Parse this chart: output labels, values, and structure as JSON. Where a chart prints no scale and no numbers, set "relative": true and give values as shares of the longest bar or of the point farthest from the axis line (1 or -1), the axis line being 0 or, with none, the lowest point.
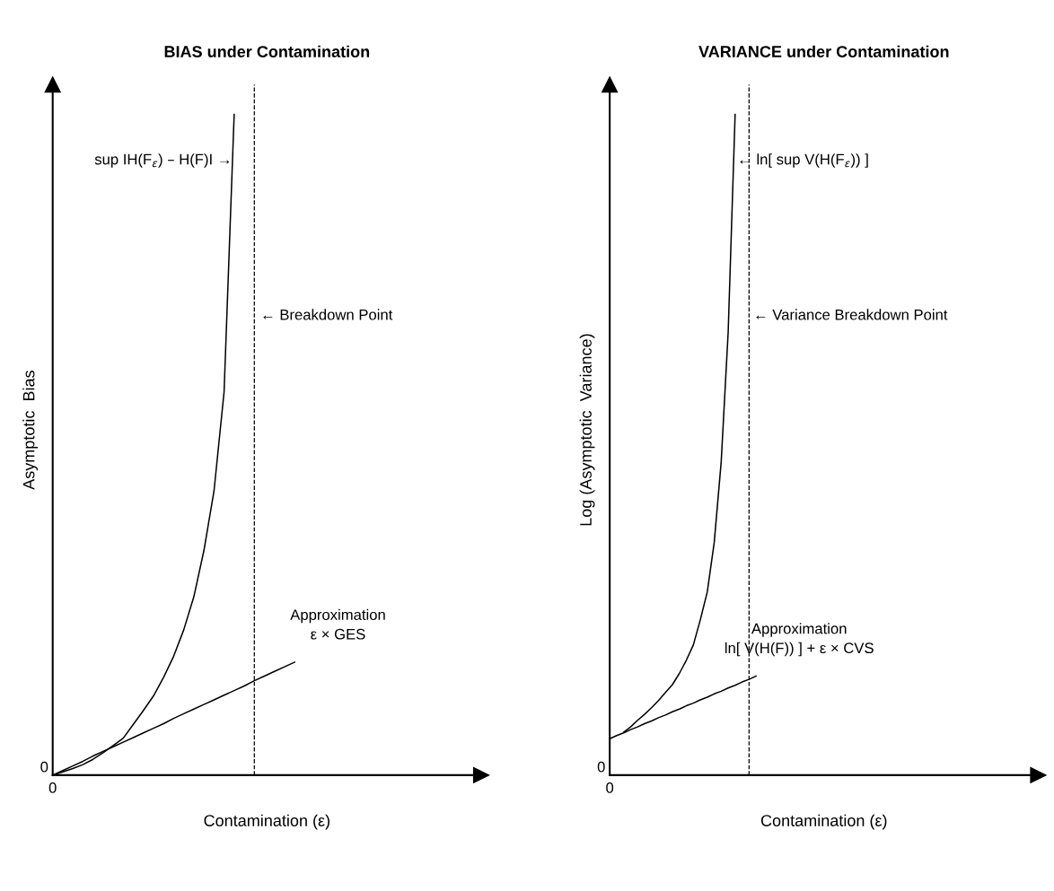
{
  "chart_data": [
    {
      "type": "line",
      "title": "BIAS under Contamination",
      "xlabel": "Contamination (ε)",
      "ylabel": "Asymptotic  Bias",
      "relative": true,
      "marker": "none",
      "categories": [
        null,
        null,
        null,
        null,
        null,
        null,
        null,
        null,
        null,
        null,
        null,
        null,
        null,
        null,
        null,
        null,
        null,
        null,
        null,
        null,
        null,
        null,
        null,
        null,
        null,
        null,
        null,
        null,
        null,
        null,
        null,
        null,
        null,
        null,
        null,
        null,
        null,
        null,
        null,
        null,
        null,
        null,
        null
      ],
      "series": [
        {
          "color": "#000000",
          "values": [
            0,
            0.005,
            0.01,
            0.016,
            0.024,
            0.034,
            0.045,
            0.056,
            0.077,
            0.098,
            0.12,
            0.148,
            0.18,
            0.22,
            0.27,
            0.34,
            0.43,
            0.58,
            1.0,
            null,
            null,
            null,
            null,
            null,
            null,
            null,
            null,
            null,
            null,
            null,
            null,
            null,
            null,
            null,
            null,
            null,
            null,
            null,
            null,
            null,
            null,
            null,
            null
          ]
        },
        {
          "color": "#000000",
          "values": [
            0,
            0.007,
            0.014,
            0.021,
            0.029,
            0.036,
            0.043,
            0.05,
            0.057,
            0.064,
            0.071,
            0.078,
            0.086,
            0.093,
            0.1,
            0.107,
            0.114,
            0.121,
            0.128,
            0.135,
            0.143,
            0.15,
            0.157,
            0.164,
            0.171,
            null,
            null,
            null,
            null,
            null,
            null,
            null,
            null,
            null,
            null,
            null,
            null,
            null,
            null,
            null,
            null,
            null,
            null
          ]
        }
      ],
      "ref_lines": [
        {
          "axis": "x",
          "label": "← Breakdown Point",
          "line_style": "dashed",
          "color": "#000000"
        }
      ],
      "annotations": [
        "sup IH(F$_{ε}$) – H(F)I →",
        "Approximation\nε × GES",
        "0"
      ]
    },
    {
      "type": "line",
      "title": "VARIANCE under Contamination",
      "xlabel": "Contamination (ε)",
      "ylabel": "Log (Asymptotic  Variance)",
      "relative": true,
      "marker": "none",
      "categories": [
        null,
        null,
        null,
        null,
        null,
        null,
        null,
        null,
        null,
        null,
        null,
        null,
        null,
        null,
        null,
        null,
        null,
        null,
        null,
        null,
        null,
        null,
        null,
        null,
        null,
        null,
        null,
        null,
        null,
        null,
        null,
        null,
        null,
        null,
        null,
        null,
        null,
        null,
        null,
        null,
        null,
        null,
        null,
        null,
        null,
        null,
        null,
        null,
        null,
        null,
        null,
        null,
        null,
        null,
        null,
        null,
        null,
        null,
        null,
        null,
        null,
        null
      ],
      "series": [
        {
          "color": "#000000",
          "values": [
            null,
            null,
            0.065,
            0.073,
            0.083,
            0.092,
            0.102,
            0.113,
            0.125,
            0.137,
            0.154,
            0.174,
            0.197,
            0.235,
            0.277,
            0.352,
            0.474,
            0.67,
            1.0,
            null,
            null,
            null,
            null,
            null,
            null,
            null,
            null,
            null,
            null,
            null,
            null,
            null,
            null,
            null,
            null,
            null,
            null,
            null,
            null,
            null,
            null,
            null,
            null,
            null,
            null,
            null,
            null,
            null,
            null,
            null,
            null,
            null,
            null,
            null,
            null,
            null,
            null,
            null,
            null,
            null,
            null,
            null
          ]
        },
        {
          "color": "#000000",
          "values": [
            0.055,
            0.06,
            0.064,
            0.069,
            0.073,
            0.078,
            0.082,
            0.087,
            0.091,
            0.096,
            0.1,
            0.105,
            0.109,
            0.114,
            0.118,
            0.123,
            0.127,
            0.132,
            0.136,
            0.141,
            0.145,
            0.15,
            null,
            null,
            null,
            null,
            null,
            null,
            null,
            null,
            null,
            null,
            null,
            null,
            null,
            null,
            null,
            null,
            null,
            null,
            null,
            null,
            null,
            null,
            null,
            null,
            null,
            null,
            null,
            null,
            null,
            null,
            null,
            null,
            null,
            null,
            null,
            null,
            null,
            null,
            null,
            null
          ]
        }
      ],
      "ref_lines": [
        {
          "axis": "x",
          "label": "← Variance Breakdown Point",
          "line_style": "dashed",
          "color": "#000000"
        }
      ],
      "annotations": [
        "← ln[ sup V(H(F$_{ε}$)) ]",
        "Approximation\nln[ V(H(F)) ] + ε × CVS",
        "0"
      ]
    }
  ]
}
